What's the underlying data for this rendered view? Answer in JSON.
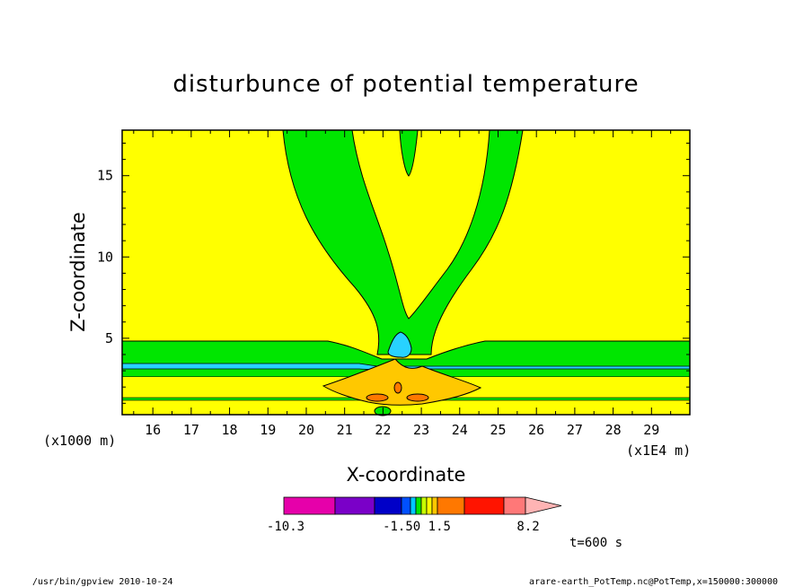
{
  "chart_data": {
    "type": "heatmap",
    "title": "disturbunce of potential temperature",
    "xlabel": "X-coordinate",
    "ylabel": "Z-coordinate",
    "x_unit_left": "(x1000 m)",
    "x_unit_right": "(x1E4 m)",
    "xlim": [
      15.2,
      30.0
    ],
    "ylim": [
      0.3,
      17.8
    ],
    "x_ticks": [
      "16",
      "17",
      "18",
      "19",
      "20",
      "21",
      "22",
      "23",
      "24",
      "25",
      "26",
      "27",
      "28",
      "29"
    ],
    "y_ticks": [
      "5",
      "10",
      "15"
    ],
    "colorbar": {
      "label_min": "-10.3",
      "label_mid": "-1.50 1.5",
      "label_max": "8.2",
      "colors": [
        "#e600aa",
        "#7a00c8",
        "#0000c8",
        "#0050ff",
        "#00c8ff",
        "#00e600",
        "#c8ff00",
        "#ffff00",
        "#ffc800",
        "#ff7800",
        "#ff1400",
        "#ff7878",
        "#ffb4b4"
      ]
    },
    "time_label": "t=600 s",
    "colors": {
      "background_field": "#ffff00",
      "green_contour": "#00e600",
      "cyan_contour": "#28d2ff",
      "orange_contour": "#ffc800",
      "dark_orange_contour": "#ff7800"
    }
  },
  "footer": {
    "program": "/usr/bin/gpview   2010-10-24",
    "source": "arare-earth_PotTemp.nc@PotTemp,x=150000:300000"
  }
}
